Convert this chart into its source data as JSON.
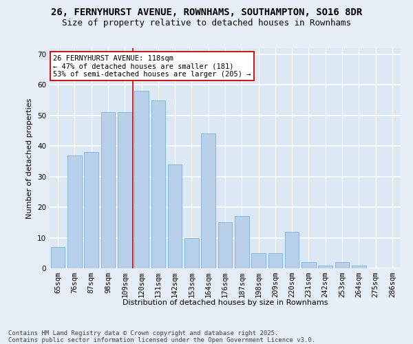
{
  "title_line1": "26, FERNYHURST AVENUE, ROWNHAMS, SOUTHAMPTON, SO16 8DR",
  "title_line2": "Size of property relative to detached houses in Rownhams",
  "xlabel": "Distribution of detached houses by size in Rownhams",
  "ylabel": "Number of detached properties",
  "categories": [
    "65sqm",
    "76sqm",
    "87sqm",
    "98sqm",
    "109sqm",
    "120sqm",
    "131sqm",
    "142sqm",
    "153sqm",
    "164sqm",
    "176sqm",
    "187sqm",
    "198sqm",
    "209sqm",
    "220sqm",
    "231sqm",
    "242sqm",
    "253sqm",
    "264sqm",
    "275sqm",
    "286sqm"
  ],
  "values": [
    7,
    37,
    38,
    51,
    51,
    58,
    55,
    34,
    10,
    44,
    15,
    17,
    5,
    5,
    12,
    2,
    1,
    2,
    1,
    0,
    0
  ],
  "bar_color": "#b8d0ea",
  "bar_edge_color": "#7aafd4",
  "vline_color": "#cc0000",
  "annotation_text": "26 FERNYHURST AVENUE: 118sqm\n← 47% of detached houses are smaller (181)\n53% of semi-detached houses are larger (205) →",
  "ylim": [
    0,
    72
  ],
  "yticks": [
    0,
    10,
    20,
    30,
    40,
    50,
    60,
    70
  ],
  "plot_bg_color": "#dde8f5",
  "fig_bg_color": "#e8eef8",
  "grid_color": "#ffffff",
  "footer_line1": "Contains HM Land Registry data © Crown copyright and database right 2025.",
  "footer_line2": "Contains public sector information licensed under the Open Government Licence v3.0.",
  "title_fontsize": 10,
  "subtitle_fontsize": 9,
  "axis_label_fontsize": 8,
  "tick_fontsize": 7.5,
  "annotation_fontsize": 7.5,
  "footer_fontsize": 6.5
}
